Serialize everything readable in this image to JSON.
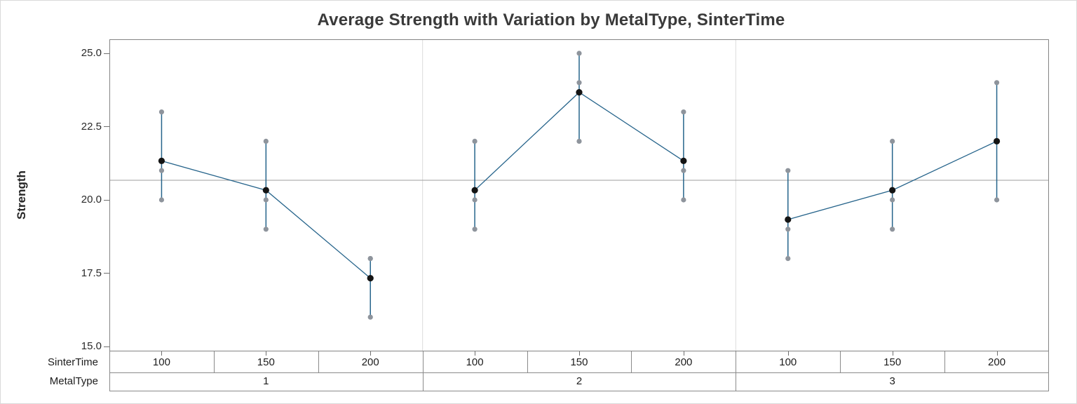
{
  "window": {
    "background": "#ffffff",
    "border_color": "#d9d9d9"
  },
  "chart_data": {
    "type": "line",
    "subtype": "individual values with group means and variation ranges (Minitab variability chart)",
    "title": "Average Strength with Variation by MetalType, SinterTime",
    "ylabel": "Strength",
    "xlabel_rows": [
      "SinterTime",
      "MetalType"
    ],
    "y_ticks": [
      "25.0",
      "22.5",
      "20.0",
      "17.5",
      "15.0"
    ],
    "ylim": [
      14.8,
      25.5
    ],
    "grid": "off",
    "legend": "none",
    "reference_line_y": 20.67,
    "colors": {
      "line": "#26648b",
      "individual_point": "#8e949c",
      "mean_point": "#141414",
      "reference_line": "#9c9c9c",
      "frame": "#848484",
      "panel_separator": "#dcdcdc"
    },
    "panels": [
      {
        "metal_type": "1",
        "groups": [
          {
            "sinter_time": "100",
            "points": [
              23,
              21,
              20
            ],
            "mean": 21.33
          },
          {
            "sinter_time": "150",
            "points": [
              22,
              20,
              19
            ],
            "mean": 20.33
          },
          {
            "sinter_time": "200",
            "points": [
              18,
              18,
              16
            ],
            "mean": 17.33
          }
        ]
      },
      {
        "metal_type": "2",
        "groups": [
          {
            "sinter_time": "100",
            "points": [
              22,
              20,
              19
            ],
            "mean": 20.33
          },
          {
            "sinter_time": "150",
            "points": [
              25,
              24,
              22
            ],
            "mean": 23.67
          },
          {
            "sinter_time": "200",
            "points": [
              23,
              21,
              20
            ],
            "mean": 21.33
          }
        ]
      },
      {
        "metal_type": "3",
        "groups": [
          {
            "sinter_time": "100",
            "points": [
              21,
              19,
              18
            ],
            "mean": 19.33
          },
          {
            "sinter_time": "150",
            "points": [
              22,
              20,
              19
            ],
            "mean": 20.33
          },
          {
            "sinter_time": "200",
            "points": [
              24,
              22,
              20
            ],
            "mean": 22.0
          }
        ]
      }
    ]
  }
}
